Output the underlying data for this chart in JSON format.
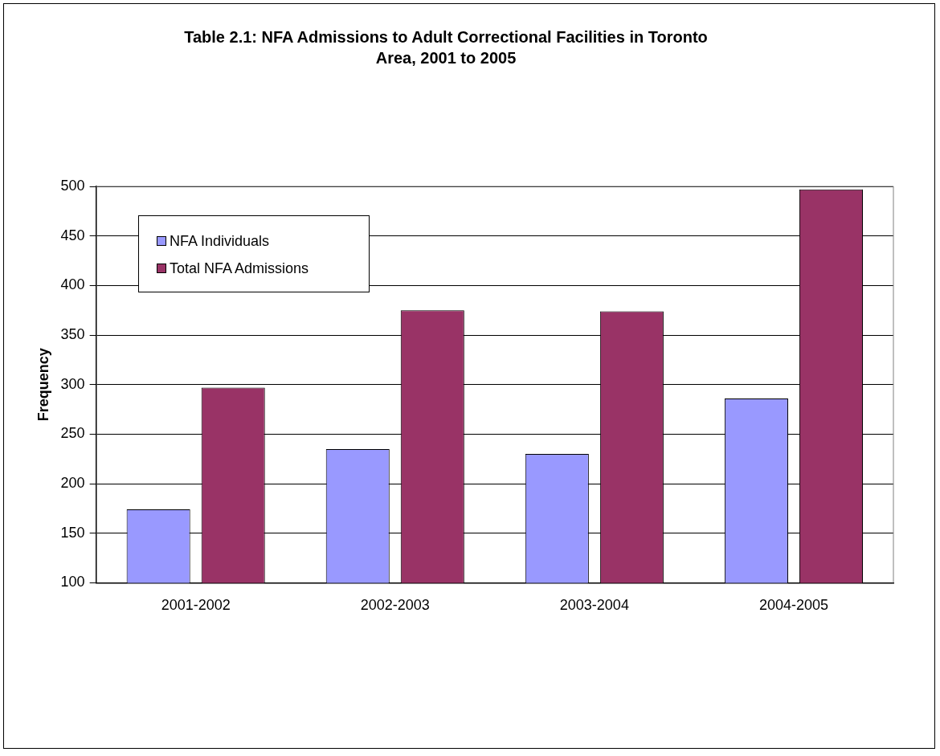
{
  "chart_data": {
    "type": "bar",
    "title": "Table 2.1: NFA Admissions to Adult Correctional Facilities in Toronto Area, 2001 to 2005",
    "ylabel": "Frequency",
    "categories": [
      "2001-2002",
      "2002-2003",
      "2003-2004",
      "2004-2005"
    ],
    "series": [
      {
        "name": "NFA Individuals",
        "color": "#9999ff",
        "values": [
          174,
          235,
          230,
          286
        ]
      },
      {
        "name": "Total NFA Admissions",
        "color": "#993366",
        "values": [
          297,
          375,
          374,
          497
        ]
      }
    ],
    "ylim": [
      100,
      500
    ],
    "yticks": [
      100,
      150,
      200,
      250,
      300,
      350,
      400,
      450,
      500
    ],
    "grid": "y",
    "legend": "top left"
  }
}
